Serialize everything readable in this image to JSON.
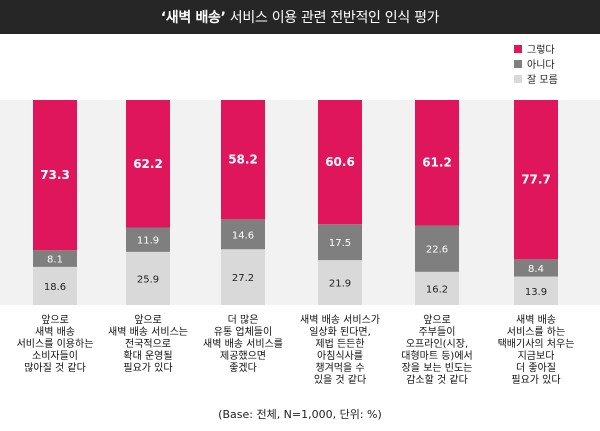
{
  "title": {
    "bold": "‘새벽 배송’",
    "normal": " 서비스 이용 관련 전반적인 인식 평가"
  },
  "footnote": "(Base: 전체, N=1,000, 단위: %)",
  "colors": {
    "agree": "#e0165c",
    "disagree": "#7f7f7f",
    "unsure": "#d9d9d9",
    "band": "#f2f2f2",
    "title_bg": "#262626"
  },
  "chart_data": {
    "type": "bar",
    "stacked": true,
    "title": "‘새벽 배송’ 서비스 이용 관련 전반적인 인식 평가",
    "ylim": [
      0,
      100
    ],
    "grid": false,
    "legend_position": "top-right",
    "categories": [
      [
        "앞으로",
        "새벽 배송",
        "서비스를 이용하는",
        "소비자들이",
        "많아질 것 같다"
      ],
      [
        "앞으로",
        "새벽 배송 서비스는",
        "전국적으로",
        "확대 운영될",
        "필요가 있다"
      ],
      [
        "더 많은",
        "유통 업체들이",
        "새벽 배송 서비스를",
        "제공했으면",
        "좋겠다"
      ],
      [
        "새벽 배송 서비스가",
        "일상화 된다면,",
        "제법 든든한",
        "아침식사를",
        "챙겨먹을 수",
        "있을 것 같다"
      ],
      [
        "앞으로",
        "주부들이",
        "오프라인(시장,",
        "대형마트 등)에서",
        "장을 보는 빈도는",
        "감소할 것 같다"
      ],
      [
        "새벽 배송",
        "서비스를 하는",
        "택배기사의 처우는",
        "지금보다",
        "더 좋아질",
        "필요가 있다"
      ]
    ],
    "series": [
      {
        "name": "그렇다",
        "color": "#e0165c",
        "values": [
          73.3,
          62.2,
          58.2,
          60.6,
          61.2,
          77.7
        ]
      },
      {
        "name": "아니다",
        "color": "#7f7f7f",
        "values": [
          8.1,
          11.9,
          14.6,
          17.5,
          22.6,
          8.4
        ]
      },
      {
        "name": "잘 모름",
        "color": "#d9d9d9",
        "values": [
          18.6,
          25.9,
          27.2,
          21.9,
          16.2,
          13.9
        ]
      }
    ]
  }
}
